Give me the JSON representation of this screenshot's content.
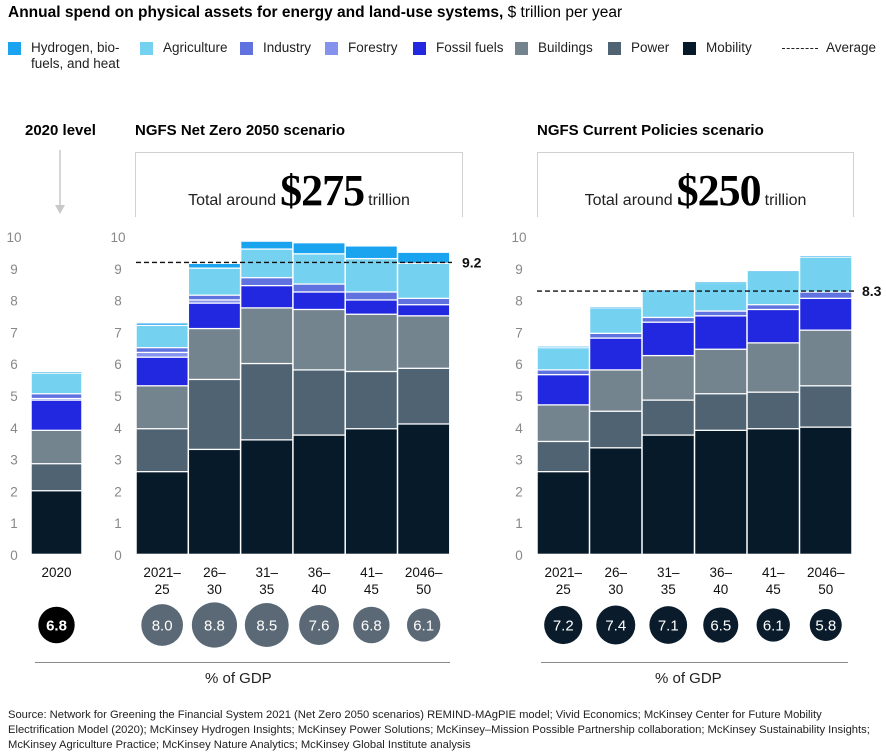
{
  "header": {
    "title_bold": "Annual spend on physical assets for energy and land-use systems,",
    "title_rest": " $ trillion per year"
  },
  "legend": [
    {
      "key": "hydrogen",
      "label": "Hydrogen, bio-\nfuels, and heat",
      "color": "#1aa3ee"
    },
    {
      "key": "agriculture",
      "label": "Agriculture",
      "color": "#74d1ef"
    },
    {
      "key": "industry",
      "label": "Industry",
      "color": "#5f72e0"
    },
    {
      "key": "forestry",
      "label": "Forestry",
      "color": "#8593ee"
    },
    {
      "key": "fossil",
      "label": "Fossil fuels",
      "color": "#2128e0"
    },
    {
      "key": "buildings",
      "label": "Buildings",
      "color": "#74848f"
    },
    {
      "key": "power",
      "label": "Power",
      "color": "#4f6373"
    },
    {
      "key": "mobility",
      "label": "Mobility",
      "color": "#061a2a"
    },
    {
      "key": "average",
      "label": "Average"
    }
  ],
  "panels": {
    "baseline": {
      "title": "2020 level"
    },
    "netzero": {
      "title": "NGFS Net Zero 2050 scenario",
      "total_pre": "Total around",
      "total_amount": "$275",
      "total_post": "trillion",
      "average_label": "9.2"
    },
    "current": {
      "title": "NGFS Current Policies scenario",
      "total_pre": "Total around",
      "total_amount": "$250",
      "total_post": "trillion",
      "average_label": "8.3"
    }
  },
  "gdp_label": "% of GDP",
  "source": "Source: Network for Greening the Financial System 2021 (Net Zero 2050 scenarios) REMIND-MAgPIE model; Vivid Economics; McKinsey Center for Future Mobility Electrification Model (2020); McKinsey Hydrogen Insights; McKinsey Power Solutions; McKinsey–Mission Possible Partnership collaboration; McKinsey Sustainability Insights; McKinsey Agriculture Practice; McKinsey Nature Analytics; McKinsey Global Institute analysis",
  "chart_data": [
    {
      "type": "bar",
      "stacked": true,
      "title": "2020 level",
      "ylabel": "$ trillion per year",
      "ylim": [
        0,
        10
      ],
      "yticks": [
        "0",
        "1",
        "2",
        "3",
        "4",
        "5",
        "6",
        "7",
        "8",
        "9",
        "10"
      ],
      "categories": [
        "2020"
      ],
      "series": [
        {
          "name": "Mobility",
          "values": [
            2.0
          ]
        },
        {
          "name": "Power",
          "values": [
            0.85
          ]
        },
        {
          "name": "Buildings",
          "values": [
            1.05
          ]
        },
        {
          "name": "Fossil fuels",
          "values": [
            0.95
          ]
        },
        {
          "name": "Forestry",
          "values": [
            0.05
          ]
        },
        {
          "name": "Industry",
          "values": [
            0.15
          ]
        },
        {
          "name": "Agriculture",
          "values": [
            0.65
          ]
        },
        {
          "name": "Hydrogen, bio-fuels, and heat",
          "values": [
            0.05
          ]
        }
      ],
      "gdp_percent": [
        "6.8"
      ]
    },
    {
      "type": "bar",
      "stacked": true,
      "title": "NGFS Net Zero 2050 scenario",
      "ylabel": "$ trillion per year",
      "ylim": [
        0,
        10
      ],
      "yticks": [
        "0",
        "1",
        "2",
        "3",
        "4",
        "5",
        "6",
        "7",
        "8",
        "9",
        "10"
      ],
      "categories": [
        "2021–\n25",
        "26–\n30",
        "31–\n35",
        "36–\n40",
        "41–\n45",
        "2046–\n50"
      ],
      "series": [
        {
          "name": "Mobility",
          "values": [
            2.6,
            3.3,
            3.6,
            3.75,
            3.95,
            4.1
          ]
        },
        {
          "name": "Power",
          "values": [
            1.35,
            2.2,
            2.4,
            2.05,
            1.8,
            1.75
          ]
        },
        {
          "name": "Buildings",
          "values": [
            1.35,
            1.6,
            1.75,
            1.9,
            1.8,
            1.65
          ]
        },
        {
          "name": "Fossil fuels",
          "values": [
            0.9,
            0.8,
            0.7,
            0.55,
            0.45,
            0.35
          ]
        },
        {
          "name": "Forestry",
          "values": [
            0.15,
            0.1,
            0.0,
            0.0,
            0.0,
            0.0
          ]
        },
        {
          "name": "Industry",
          "values": [
            0.15,
            0.15,
            0.25,
            0.25,
            0.25,
            0.2
          ]
        },
        {
          "name": "Agriculture",
          "values": [
            0.7,
            0.85,
            0.9,
            0.95,
            1.05,
            1.1
          ]
        },
        {
          "name": "Hydrogen, bio-fuels, and heat",
          "values": [
            0.08,
            0.15,
            0.25,
            0.35,
            0.4,
            0.35
          ]
        }
      ],
      "average": 9.2,
      "total": "$275 trillion",
      "gdp_percent": [
        "8.0",
        "8.8",
        "8.5",
        "7.6",
        "6.8",
        "6.1"
      ]
    },
    {
      "type": "bar",
      "stacked": true,
      "title": "NGFS Current Policies scenario",
      "ylabel": "$ trillion per year",
      "ylim": [
        0,
        10
      ],
      "yticks": [
        "0",
        "1",
        "2",
        "3",
        "4",
        "5",
        "6",
        "7",
        "8",
        "9",
        "10"
      ],
      "categories": [
        "2021–\n25",
        "26–\n30",
        "31–\n35",
        "36–\n40",
        "41–\n45",
        "2046–\n50"
      ],
      "series": [
        {
          "name": "Mobility",
          "values": [
            2.6,
            3.35,
            3.75,
            3.9,
            3.95,
            4.0
          ]
        },
        {
          "name": "Power",
          "values": [
            0.95,
            1.15,
            1.1,
            1.15,
            1.15,
            1.3
          ]
        },
        {
          "name": "Buildings",
          "values": [
            1.15,
            1.3,
            1.4,
            1.4,
            1.55,
            1.75
          ]
        },
        {
          "name": "Fossil fuels",
          "values": [
            0.95,
            1.0,
            1.05,
            1.05,
            1.05,
            1.0
          ]
        },
        {
          "name": "Forestry",
          "values": [
            0.0,
            0.0,
            0.0,
            0.0,
            0.0,
            0.0
          ]
        },
        {
          "name": "Industry",
          "values": [
            0.15,
            0.15,
            0.15,
            0.15,
            0.15,
            0.2
          ]
        },
        {
          "name": "Agriculture",
          "values": [
            0.7,
            0.8,
            0.85,
            0.9,
            1.05,
            1.1
          ]
        },
        {
          "name": "Hydrogen, bio-fuels, and heat",
          "values": [
            0.05,
            0.03,
            0.02,
            0.02,
            0.02,
            0.05
          ]
        }
      ],
      "average": 8.3,
      "total": "$250 trillion",
      "gdp_percent": [
        "7.2",
        "7.4",
        "7.1",
        "6.5",
        "6.1",
        "5.8"
      ]
    }
  ]
}
